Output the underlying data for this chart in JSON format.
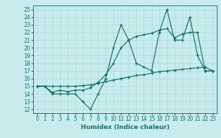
{
  "title": "",
  "xlabel": "Humidex (Indice chaleur)",
  "ylabel": "",
  "bg_color": "#c8ecec",
  "line_color": "#1a7070",
  "grid_color": "#a8d8d8",
  "xlim": [
    -0.5,
    23.5
  ],
  "ylim": [
    11.5,
    25.5
  ],
  "yticks": [
    12,
    13,
    14,
    15,
    16,
    17,
    18,
    19,
    20,
    21,
    22,
    23,
    24,
    25
  ],
  "xticks": [
    0,
    1,
    2,
    3,
    4,
    5,
    6,
    7,
    8,
    9,
    10,
    11,
    12,
    13,
    14,
    15,
    16,
    17,
    18,
    19,
    20,
    21,
    22,
    23
  ],
  "line1_x": [
    0,
    1,
    2,
    3,
    4,
    5,
    6,
    7,
    8,
    9,
    10,
    11,
    12,
    13,
    14,
    15,
    16,
    17,
    18,
    19,
    20,
    21,
    22,
    23
  ],
  "line1_y": [
    15,
    15,
    14,
    14,
    14,
    14,
    13,
    12,
    14,
    16,
    20,
    23,
    21,
    18,
    17.5,
    17,
    22,
    25,
    21,
    21,
    24,
    19,
    17,
    17
  ],
  "line2_x": [
    0,
    1,
    2,
    3,
    4,
    5,
    6,
    7,
    8,
    9,
    10,
    11,
    12,
    13,
    14,
    15,
    16,
    17,
    18,
    19,
    20,
    21,
    22,
    23
  ],
  "line2_y": [
    15,
    15,
    15,
    15,
    15,
    15,
    15.1,
    15.2,
    15.4,
    15.6,
    15.8,
    16.0,
    16.2,
    16.4,
    16.5,
    16.7,
    16.9,
    17.0,
    17.1,
    17.2,
    17.3,
    17.4,
    17.5,
    17.0
  ],
  "line3_x": [
    0,
    1,
    2,
    3,
    4,
    5,
    6,
    7,
    8,
    9,
    10,
    11,
    12,
    13,
    14,
    15,
    16,
    17,
    18,
    19,
    20,
    21,
    22,
    23
  ],
  "line3_y": [
    15,
    15,
    14.2,
    14.5,
    14.3,
    14.5,
    14.5,
    14.8,
    15.5,
    16.5,
    18,
    20,
    21,
    21.5,
    21.7,
    21.9,
    22.3,
    22.5,
    21.3,
    21.8,
    22,
    22,
    17,
    17
  ],
  "tick_fontsize": 5.5,
  "xlabel_fontsize": 6.5,
  "linewidth": 0.9,
  "markersize": 3.5
}
